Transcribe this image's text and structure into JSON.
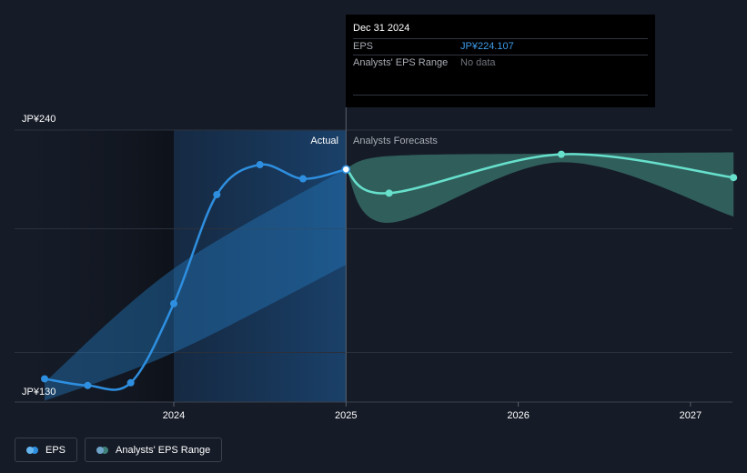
{
  "chart_data": {
    "type": "line",
    "y_axis_labels": {
      "top": "JP¥240",
      "bottom": "JP¥130"
    },
    "ylim": [
      130,
      240
    ],
    "x_ticks": [
      {
        "label": "2024",
        "x": 2024.0
      },
      {
        "label": "2025",
        "x": 2025.0
      },
      {
        "label": "2026",
        "x": 2026.0
      },
      {
        "label": "2027",
        "x": 2027.0
      }
    ],
    "divider_x": 2025.0,
    "actual_label": "Actual",
    "forecast_label": "Analysts Forecasts",
    "series": [
      {
        "name": "EPS",
        "color": "#2e8fe0",
        "points": [
          {
            "x": 2023.25,
            "y": 139.4
          },
          {
            "x": 2023.5,
            "y": 136.7
          },
          {
            "x": 2023.75,
            "y": 137.8
          },
          {
            "x": 2024.0,
            "y": 169.8
          },
          {
            "x": 2024.25,
            "y": 213.9
          },
          {
            "x": 2024.5,
            "y": 226.0
          },
          {
            "x": 2024.75,
            "y": 220.3
          },
          {
            "x": 2025.0,
            "y": 224.1
          }
        ]
      },
      {
        "name": "Forecast",
        "color": "#67e0cc",
        "points": [
          {
            "x": 2025.0,
            "y": 224.1
          },
          {
            "x": 2025.25,
            "y": 214.5
          },
          {
            "x": 2026.25,
            "y": 230.2
          },
          {
            "x": 2027.25,
            "y": 220.8
          }
        ]
      }
    ],
    "past_range": {
      "x": [
        2023.25,
        2024.0,
        2025.0
      ],
      "upper": [
        138.0,
        184.0,
        224.5
      ],
      "lower": [
        130.5,
        150.0,
        185.5
      ]
    },
    "forecast_range": {
      "x": [
        2025.0,
        2025.25,
        2026.25,
        2027.25
      ],
      "upper": [
        224.5,
        229.5,
        230.5,
        231.0
      ],
      "lower": [
        224.0,
        202.5,
        227.0,
        205.0
      ]
    }
  },
  "tooltip": {
    "date": "Dec 31 2024",
    "eps_label": "EPS",
    "eps_value": "JP¥224.107",
    "range_label": "Analysts' EPS Range",
    "range_value": "No data"
  },
  "legend": [
    {
      "label": "EPS",
      "colors": [
        "#65b6f0",
        "#2e8fe0"
      ]
    },
    {
      "label": "Analysts' EPS Range",
      "colors": [
        "#6ea3c8",
        "#3f7f7a"
      ]
    }
  ]
}
